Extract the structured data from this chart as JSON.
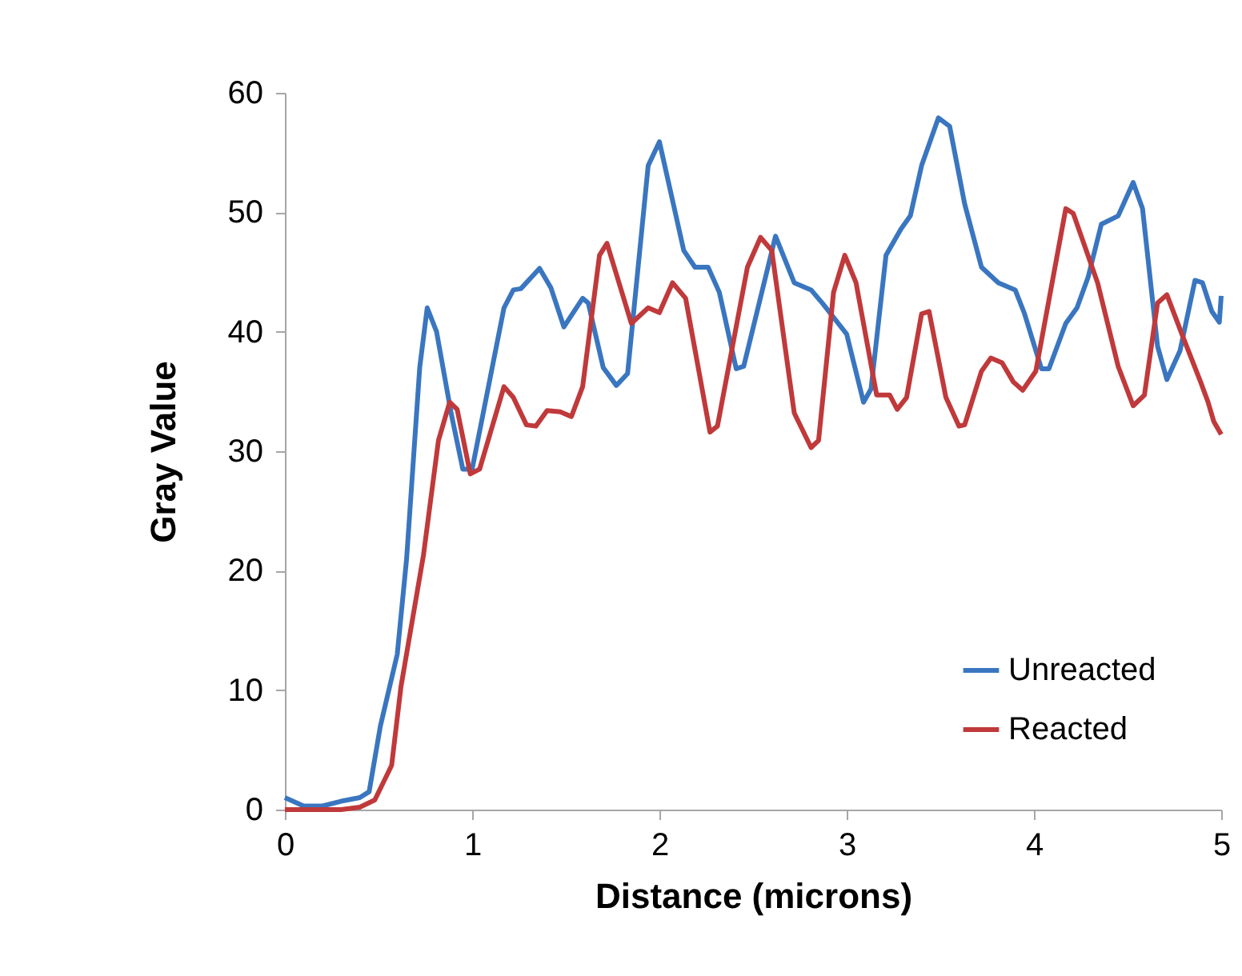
{
  "chart_data": {
    "type": "line",
    "xlabel": "Distance (microns)",
    "ylabel": "Gray Value",
    "xlim": [
      0,
      5
    ],
    "xticks": [
      0,
      1,
      2,
      3,
      4,
      5
    ],
    "ylim": [
      0,
      60
    ],
    "yticks": [
      0,
      10,
      20,
      30,
      40,
      50,
      60
    ],
    "grid": false,
    "legend": "bottom right",
    "marker": "none",
    "line_style": "solid",
    "series": [
      {
        "name": "Unreacted",
        "color": "#3a76c0",
        "x": [
          0,
          0.1,
          0.2,
          0.3,
          0.4,
          0.45,
          0.51,
          0.6,
          0.65,
          0.72,
          0.76,
          0.81,
          0.89,
          0.95,
          1.0,
          1.17,
          1.22,
          1.26,
          1.36,
          1.42,
          1.49,
          1.59,
          1.62,
          1.7,
          1.77,
          1.83,
          1.94,
          2.0,
          2.13,
          2.19,
          2.26,
          2.32,
          2.41,
          2.45,
          2.62,
          2.72,
          2.81,
          2.87,
          3.0,
          3.09,
          3.13,
          3.21,
          3.29,
          3.34,
          3.4,
          3.49,
          3.55,
          3.63,
          3.72,
          3.81,
          3.9,
          3.95,
          4.04,
          4.08,
          4.17,
          4.23,
          4.29,
          4.36,
          4.45,
          4.53,
          4.58,
          4.66,
          4.71,
          4.78,
          4.86,
          4.9,
          4.95,
          4.99,
          5.0
        ],
        "values": [
          1,
          0.3,
          0.3,
          0.7,
          1,
          1.5,
          7,
          13,
          21,
          37,
          42,
          40,
          33,
          28.5,
          28.5,
          42,
          43.5,
          43.6,
          45.3,
          43.7,
          40.4,
          42.8,
          42.4,
          37,
          35.5,
          36.5,
          53.9,
          55.9,
          46.8,
          45.4,
          45.4,
          43.3,
          36.9,
          37.1,
          48,
          44.1,
          43.5,
          42.4,
          39.8,
          34.1,
          35.2,
          46.4,
          48.6,
          49.7,
          53.9,
          57.9,
          57.2,
          50.7,
          45.4,
          44.1,
          43.5,
          41.5,
          36.9,
          36.9,
          40.7,
          42,
          44.6,
          49,
          49.7,
          52.5,
          50.3,
          38.8,
          36,
          38.4,
          44.3,
          44.1,
          41.7,
          40.8,
          43
        ]
      },
      {
        "name": "Reacted",
        "color": "#c0393b",
        "x": [
          0,
          0.1,
          0.2,
          0.3,
          0.4,
          0.48,
          0.57,
          0.62,
          0.74,
          0.82,
          0.88,
          0.92,
          0.99,
          1.04,
          1.17,
          1.22,
          1.29,
          1.34,
          1.4,
          1.47,
          1.53,
          1.59,
          1.68,
          1.72,
          1.85,
          1.94,
          2.0,
          2.07,
          2.14,
          2.27,
          2.31,
          2.47,
          2.54,
          2.6,
          2.72,
          2.81,
          2.85,
          2.93,
          2.99,
          3.05,
          3.16,
          3.23,
          3.27,
          3.32,
          3.4,
          3.44,
          3.53,
          3.6,
          3.63,
          3.72,
          3.77,
          3.83,
          3.89,
          3.94,
          4.01,
          4.17,
          4.21,
          4.34,
          4.45,
          4.53,
          4.59,
          4.66,
          4.71,
          4.79,
          4.89,
          4.93,
          4.96,
          5.0
        ],
        "values": [
          0,
          0,
          0,
          0,
          0.2,
          0.8,
          3.7,
          10.3,
          21.3,
          30.9,
          34.1,
          33.5,
          28.1,
          28.5,
          35.4,
          34.5,
          32.2,
          32.1,
          33.4,
          33.3,
          32.9,
          35.4,
          46.4,
          47.4,
          40.7,
          42,
          41.6,
          44.1,
          42.8,
          31.6,
          32.1,
          45.4,
          47.9,
          46.8,
          33.2,
          30.3,
          30.9,
          43.3,
          46.4,
          44.1,
          34.7,
          34.7,
          33.5,
          34.5,
          41.5,
          41.7,
          34.5,
          32.1,
          32.2,
          36.7,
          37.8,
          37.4,
          35.8,
          35.1,
          36.7,
          50.3,
          49.9,
          44.1,
          37.1,
          33.8,
          34.7,
          42.4,
          43.1,
          39.8,
          35.8,
          34.1,
          32.5,
          31.4
        ]
      }
    ]
  }
}
